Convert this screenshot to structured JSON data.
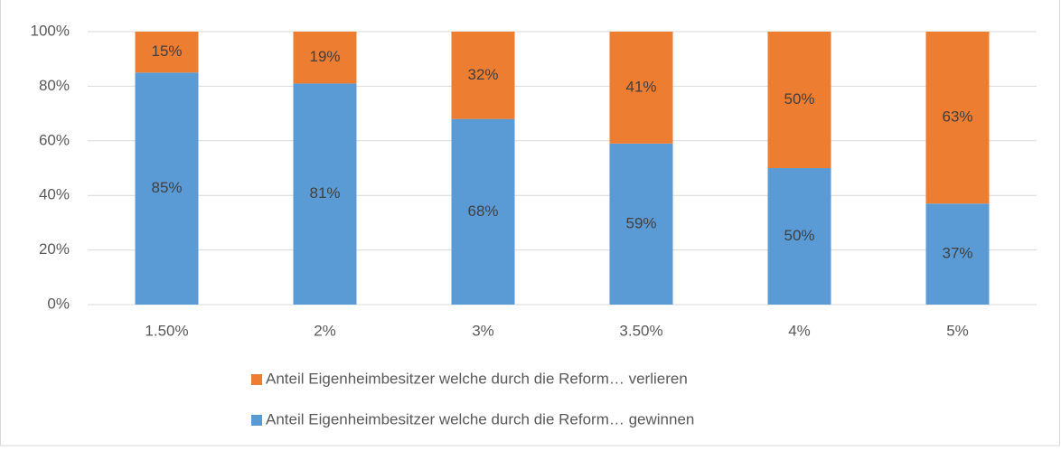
{
  "chart_data": {
    "type": "stacked_bar",
    "categories": [
      "1.50%",
      "2%",
      "3%",
      "3.50%",
      "4%",
      "5%"
    ],
    "series": [
      {
        "name": "Anteil Eigenheimbesitzer welche durch die Reform… gewinnen",
        "color": "#5b9bd5",
        "values": [
          85,
          81,
          68,
          59,
          50,
          37
        ],
        "value_labels": [
          "85%",
          "81%",
          "68%",
          "59%",
          "50%",
          "37%"
        ]
      },
      {
        "name": "Anteil Eigenheimbesitzer welche durch die Reform… verlieren",
        "color": "#ed7d31",
        "values": [
          15,
          19,
          32,
          41,
          50,
          63
        ],
        "value_labels": [
          "15%",
          "19%",
          "32%",
          "41%",
          "50%",
          "63%"
        ]
      }
    ],
    "ylim": [
      0,
      100
    ],
    "yticks": [
      {
        "value": 0,
        "label": "0%"
      },
      {
        "value": 20,
        "label": "20%"
      },
      {
        "value": 40,
        "label": "40%"
      },
      {
        "value": 60,
        "label": "60%"
      },
      {
        "value": 80,
        "label": "80%"
      },
      {
        "value": 100,
        "label": "100%"
      }
    ],
    "grid": true
  }
}
